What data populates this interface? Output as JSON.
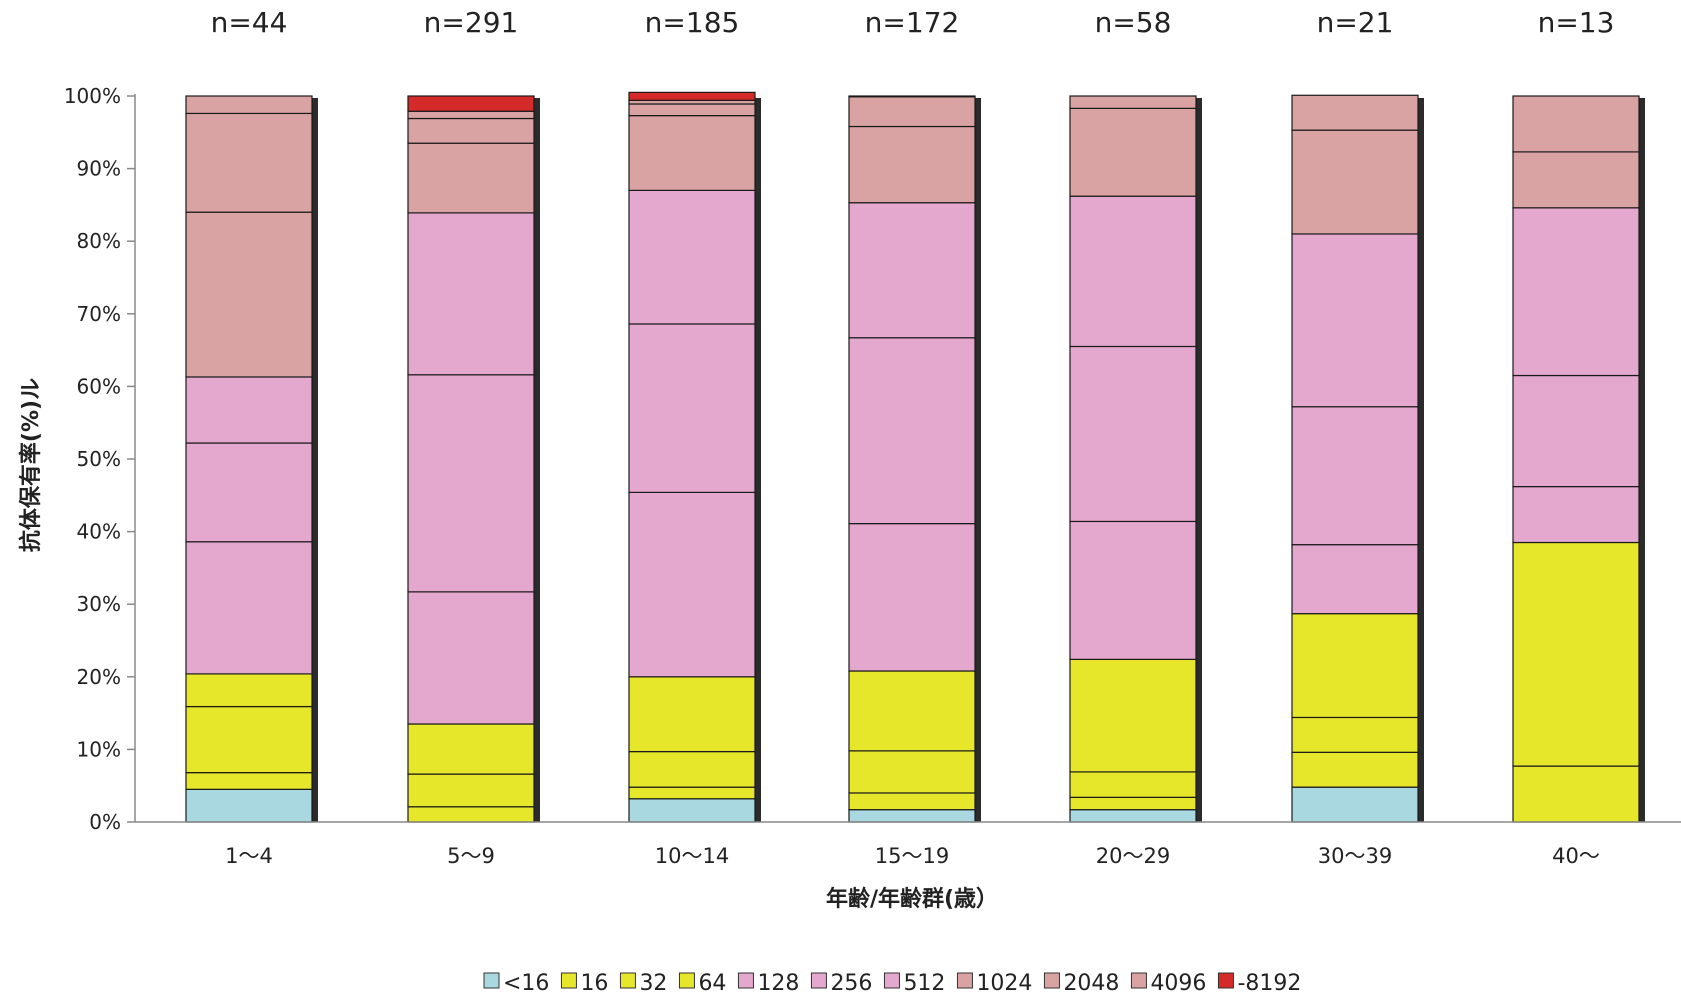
{
  "chart_data": {
    "type": "bar",
    "stacked": "percent",
    "title": "",
    "ylabel": "抗体保有率(%)ル",
    "xlabel": "年齢/年齢群(歳）",
    "ylim": [
      0,
      100
    ],
    "y_ticks": [
      "0%",
      "10%",
      "20%",
      "30%",
      "40%",
      "50%",
      "60%",
      "70%",
      "80%",
      "90%",
      "100%"
    ],
    "grid": false,
    "legend_position": "bottom",
    "categories": [
      "1～4",
      "5～9",
      "10～14",
      "15～19",
      "20～29",
      "30～39",
      "40～"
    ],
    "n_labels": [
      "n=44",
      "n=291",
      "n=185",
      "n=172",
      "n=58",
      "n=21",
      "n=13"
    ],
    "series": [
      {
        "name": "<16",
        "color": "#a9d8e0",
        "values": [
          4.5,
          0,
          3.2,
          1.7,
          1.7,
          4.8,
          0
        ]
      },
      {
        "name": "16",
        "color": "#e6e62a",
        "values": [
          2.3,
          2.1,
          1.6,
          2.3,
          1.7,
          4.8,
          0
        ]
      },
      {
        "name": "32",
        "color": "#e6e62a",
        "values": [
          9.1,
          4.5,
          4.9,
          5.8,
          3.5,
          4.8,
          7.7
        ]
      },
      {
        "name": "64",
        "color": "#e6e62a",
        "values": [
          4.5,
          6.9,
          10.3,
          11.0,
          15.5,
          14.3,
          30.8
        ]
      },
      {
        "name": "128",
        "color": "#e4a8cf",
        "values": [
          18.2,
          18.2,
          25.4,
          20.3,
          19.0,
          9.5,
          7.7
        ]
      },
      {
        "name": "256",
        "color": "#e4a8cf",
        "values": [
          13.6,
          29.9,
          23.2,
          25.6,
          24.1,
          19.0,
          15.3
        ]
      },
      {
        "name": "512",
        "color": "#e4a8cf",
        "values": [
          9.1,
          22.3,
          18.4,
          18.6,
          20.7,
          23.8,
          23.1
        ]
      },
      {
        "name": "1024",
        "color": "#d9a3a3",
        "values": [
          22.7,
          9.6,
          10.3,
          10.5,
          12.1,
          14.3,
          7.7
        ]
      },
      {
        "name": "2048",
        "color": "#d9a3a3",
        "values": [
          13.6,
          3.4,
          1.6,
          4.1,
          1.7,
          4.8,
          7.7
        ]
      },
      {
        "name": "4096",
        "color": "#d9a3a3",
        "values": [
          2.4,
          1.0,
          0.5,
          0.1,
          0.0,
          0.0,
          0.0
        ]
      },
      {
        "name": "-8192",
        "color": "#d42a2a",
        "values": [
          0,
          2.1,
          1.1,
          0,
          0,
          0,
          0
        ]
      }
    ]
  }
}
